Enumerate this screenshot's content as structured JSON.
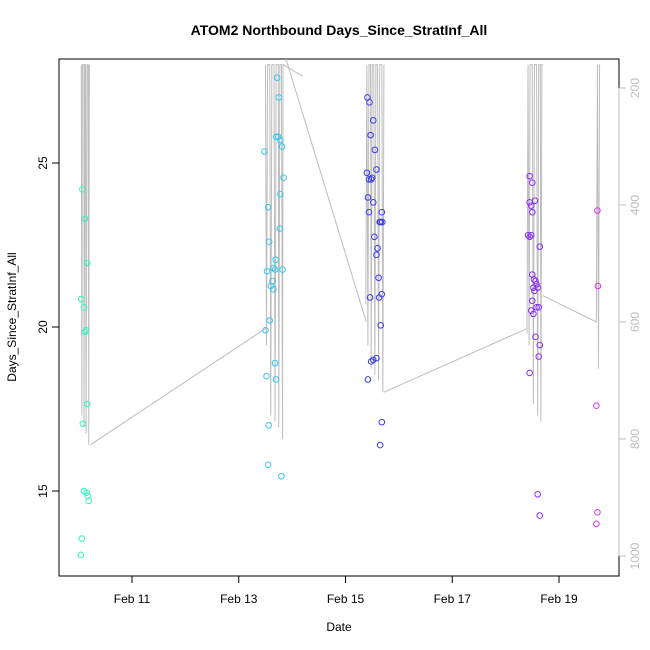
{
  "chart_data": {
    "type": "scatter",
    "title": "ATOM2 Northbound Days_Since_StratInf_All",
    "xlabel": "Date",
    "ylabel": "Days_Since_StratInf_All",
    "x_ticks": [
      "Feb 11",
      "Feb 13",
      "Feb 15",
      "Feb 17",
      "Feb 19"
    ],
    "y_ticks": [
      15,
      20,
      25
    ],
    "y_right_ticks": [
      200,
      400,
      600,
      800,
      1000
    ],
    "x_range_days": [
      9.9,
      11.2
    ],
    "y_range": [
      12.4,
      28.1
    ],
    "y_right_range": [
      1010,
      160
    ],
    "x_axis_start_date": "2016-02-10",
    "grid": false,
    "legend": "none",
    "colors": {
      "axis": "#000000",
      "line": "#bdbdbd",
      "right_axis": "#bdbdbd"
    },
    "flights": [
      {
        "color": "#33f5c0",
        "points": [
          [
            10.07,
            24.2
          ],
          [
            10.12,
            23.3
          ],
          [
            10.16,
            21.95
          ],
          [
            10.05,
            20.85
          ],
          [
            10.1,
            20.6
          ],
          [
            10.14,
            19.9
          ],
          [
            10.12,
            19.85
          ],
          [
            10.16,
            17.65
          ],
          [
            10.08,
            17.05
          ],
          [
            10.1,
            15.0
          ],
          [
            10.15,
            14.95
          ],
          [
            10.17,
            14.85
          ],
          [
            10.19,
            14.7
          ],
          [
            10.06,
            13.55
          ],
          [
            10.04,
            13.05
          ]
        ]
      },
      {
        "color": "#33c8f5",
        "points": [
          [
            13.72,
            27.6
          ],
          [
            13.75,
            27.0
          ],
          [
            13.48,
            25.35
          ],
          [
            13.7,
            25.8
          ],
          [
            13.74,
            25.8
          ],
          [
            13.78,
            25.7
          ],
          [
            13.81,
            25.5
          ],
          [
            13.84,
            24.55
          ],
          [
            13.78,
            24.05
          ],
          [
            13.55,
            23.65
          ],
          [
            13.77,
            23.0
          ],
          [
            13.57,
            22.6
          ],
          [
            13.69,
            22.05
          ],
          [
            13.53,
            21.7
          ],
          [
            13.65,
            21.8
          ],
          [
            13.68,
            21.75
          ],
          [
            13.82,
            21.75
          ],
          [
            13.63,
            21.4
          ],
          [
            13.6,
            21.25
          ],
          [
            13.65,
            21.15
          ],
          [
            13.58,
            20.2
          ],
          [
            13.5,
            19.9
          ],
          [
            13.68,
            18.9
          ],
          [
            13.52,
            18.5
          ],
          [
            13.7,
            18.4
          ],
          [
            13.56,
            17.0
          ],
          [
            13.55,
            15.8
          ],
          [
            13.8,
            15.45
          ]
        ]
      },
      {
        "color": "#3c3cf0",
        "points": [
          [
            15.41,
            27.0
          ],
          [
            15.45,
            26.85
          ],
          [
            15.52,
            26.3
          ],
          [
            15.47,
            25.85
          ],
          [
            15.55,
            25.4
          ],
          [
            15.4,
            24.7
          ],
          [
            15.58,
            24.8
          ],
          [
            15.5,
            24.55
          ],
          [
            15.44,
            24.5
          ],
          [
            15.48,
            24.5
          ],
          [
            15.42,
            23.95
          ],
          [
            15.52,
            23.8
          ],
          [
            15.44,
            23.5
          ],
          [
            15.68,
            23.5
          ],
          [
            15.64,
            23.2
          ],
          [
            15.66,
            23.2
          ],
          [
            15.69,
            23.2
          ],
          [
            15.54,
            22.75
          ],
          [
            15.6,
            22.4
          ],
          [
            15.58,
            22.2
          ],
          [
            15.62,
            21.5
          ],
          [
            15.46,
            20.9
          ],
          [
            15.63,
            20.9
          ],
          [
            15.68,
            21.0
          ],
          [
            15.66,
            20.05
          ],
          [
            15.58,
            19.05
          ],
          [
            15.52,
            19.0
          ],
          [
            15.48,
            18.95
          ],
          [
            15.42,
            18.4
          ],
          [
            15.68,
            17.1
          ],
          [
            15.65,
            16.4
          ]
        ]
      },
      {
        "color": "#8a30f5",
        "points": [
          [
            18.45,
            24.6
          ],
          [
            18.5,
            24.4
          ],
          [
            18.45,
            23.8
          ],
          [
            18.48,
            23.7
          ],
          [
            18.55,
            23.85
          ],
          [
            18.5,
            23.5
          ],
          [
            18.42,
            22.8
          ],
          [
            18.45,
            22.75
          ],
          [
            18.48,
            22.8
          ],
          [
            18.64,
            22.45
          ],
          [
            18.5,
            21.6
          ],
          [
            18.53,
            21.45
          ],
          [
            18.56,
            21.4
          ],
          [
            18.58,
            21.3
          ],
          [
            18.6,
            21.2
          ],
          [
            18.52,
            21.2
          ],
          [
            18.54,
            21.1
          ],
          [
            18.5,
            20.8
          ],
          [
            18.58,
            20.6
          ],
          [
            18.62,
            20.6
          ],
          [
            18.48,
            20.5
          ],
          [
            18.52,
            20.4
          ],
          [
            18.56,
            19.7
          ],
          [
            18.64,
            19.45
          ],
          [
            18.62,
            19.1
          ],
          [
            18.45,
            18.6
          ],
          [
            18.6,
            14.9
          ],
          [
            18.64,
            14.25
          ]
        ]
      },
      {
        "color": "#dd33f0",
        "points": [
          [
            19.72,
            23.55
          ],
          [
            19.73,
            21.25
          ],
          [
            19.7,
            17.6
          ],
          [
            19.72,
            14.35
          ],
          [
            19.7,
            14.0
          ]
        ]
      }
    ],
    "line_series": {
      "description": "gray altitude trace on right axis",
      "color": "#bdbdbd",
      "right_axis_values": [
        [
          10.05,
          160
        ],
        [
          10.06,
          760
        ],
        [
          10.07,
          160
        ],
        [
          10.1,
          160
        ],
        [
          10.1,
          780
        ],
        [
          10.12,
          160
        ],
        [
          10.13,
          160
        ],
        [
          10.14,
          790
        ],
        [
          10.16,
          160
        ],
        [
          10.18,
          160
        ],
        [
          10.19,
          810
        ],
        [
          10.2,
          160
        ],
        [
          13.5,
          160
        ],
        [
          13.52,
          640
        ],
        [
          13.54,
          160
        ],
        [
          13.58,
          160
        ],
        [
          13.6,
          760
        ],
        [
          13.62,
          160
        ],
        [
          13.66,
          160
        ],
        [
          13.68,
          770
        ],
        [
          13.7,
          160
        ],
        [
          13.74,
          160
        ],
        [
          13.75,
          780
        ],
        [
          13.77,
          160
        ],
        [
          13.8,
          160
        ],
        [
          13.82,
          800
        ],
        [
          13.83,
          160
        ],
        [
          14.2,
          180
        ],
        [
          15.38,
          570
        ],
        [
          15.4,
          160
        ],
        [
          15.42,
          640
        ],
        [
          15.44,
          160
        ],
        [
          15.47,
          160
        ],
        [
          15.48,
          680
        ],
        [
          15.5,
          160
        ],
        [
          15.53,
          160
        ],
        [
          15.55,
          690
        ],
        [
          15.57,
          160
        ],
        [
          15.6,
          160
        ],
        [
          15.62,
          700
        ],
        [
          15.64,
          160
        ],
        [
          15.68,
          160
        ],
        [
          15.7,
          720
        ],
        [
          15.72,
          160
        ],
        [
          18.4,
          620
        ],
        [
          18.42,
          160
        ],
        [
          18.44,
          640
        ],
        [
          18.46,
          160
        ],
        [
          18.5,
          160
        ],
        [
          18.52,
          740
        ],
        [
          18.54,
          160
        ],
        [
          18.58,
          160
        ],
        [
          18.6,
          760
        ],
        [
          18.62,
          160
        ],
        [
          18.65,
          160
        ],
        [
          18.66,
          770
        ],
        [
          18.68,
          160
        ],
        [
          18.7,
          160
        ],
        [
          19.7,
          600
        ],
        [
          19.72,
          160
        ],
        [
          19.74,
          680
        ],
        [
          19.76,
          160
        ]
      ]
    },
    "connector_lines": [
      [
        [
          10.22,
          810
        ],
        [
          13.52,
          610
        ]
      ],
      [
        [
          13.85,
          140
        ],
        [
          15.39,
          600
        ]
      ],
      [
        [
          15.72,
          720
        ],
        [
          18.38,
          612
        ]
      ],
      [
        [
          18.7,
          555
        ],
        [
          19.7,
          600
        ]
      ]
    ]
  }
}
